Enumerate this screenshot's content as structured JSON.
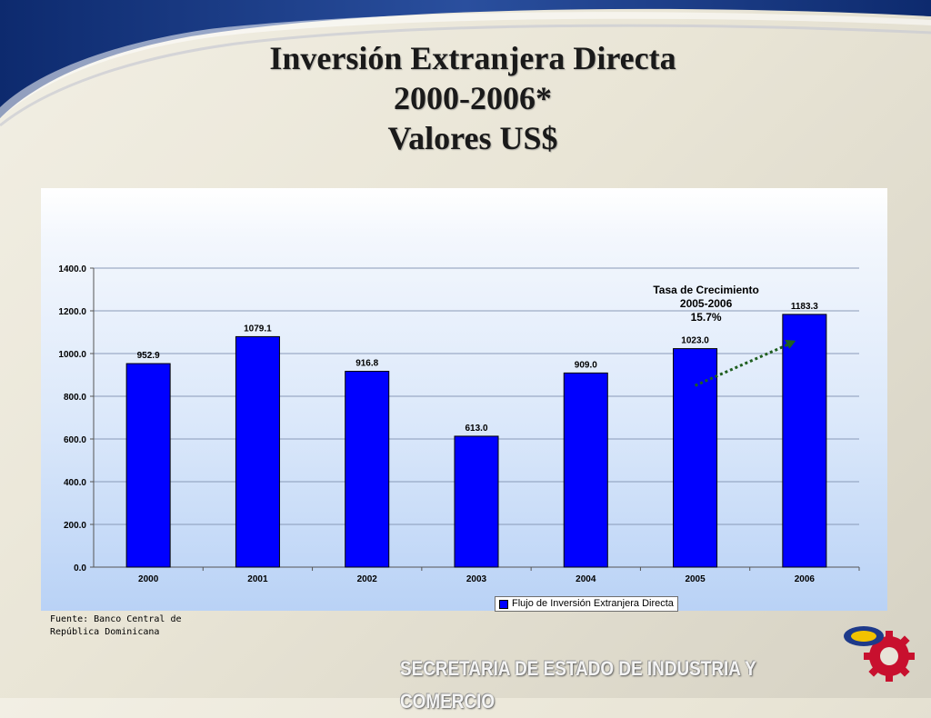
{
  "title": {
    "line1": "Inversión Extranjera Directa",
    "line2": "2000-2006*",
    "line3": "Valores US$"
  },
  "source": {
    "line1": "Fuente: Banco Central de",
    "line2": "República Dominicana"
  },
  "footer": {
    "text": "SECRETARIA DE ESTADO DE INDUSTRIA Y COMERCIO"
  },
  "colors": {
    "bar": "#0000ff",
    "banner": "#1e3a8a",
    "arrow": "#1f5f1f"
  },
  "icons": {
    "logo": "gear-emblem-icon"
  },
  "chart_data": {
    "type": "bar",
    "categories": [
      "2000",
      "2001",
      "2002",
      "2003",
      "2004",
      "2005",
      "2006"
    ],
    "series": [
      {
        "name": "Flujo de Inversión Extranjera Directa",
        "values": [
          952.9,
          1079.1,
          916.8,
          613.0,
          909.0,
          1023.0,
          1183.3
        ],
        "labels": [
          "952.9",
          "1079.1",
          "916.8",
          "613.0",
          "909.0",
          "1023.0",
          "1183.3"
        ]
      }
    ],
    "ylim": [
      0,
      1400
    ],
    "yticks": [
      0,
      200,
      400,
      600,
      800,
      1000,
      1200,
      1400
    ],
    "ytick_labels": [
      "0.0",
      "200.0",
      "400.0",
      "600.0",
      "800.0",
      "1000.0",
      "1200.0",
      "1400.0"
    ],
    "grid": true,
    "legend": "bottom-right",
    "annotation": {
      "line1": "Tasa de Crecimiento",
      "line2": "2005-2006",
      "line3": "15.7%"
    }
  }
}
